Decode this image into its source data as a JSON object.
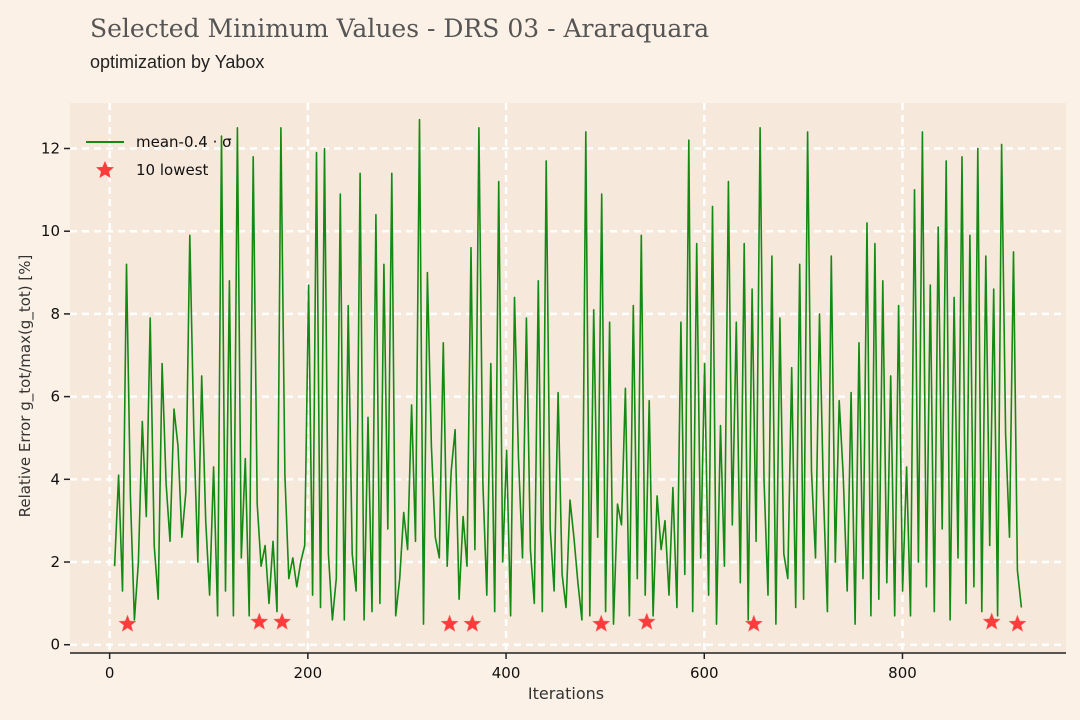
{
  "header": {
    "title": "Selected Minimum Values - DRS 03 - Araraquara",
    "subtitle": "optimization by Yabox"
  },
  "legend": {
    "line_label": "mean-0.4 · σ",
    "star_label": "10 lowest"
  },
  "colors": {
    "background": "#fcf1e7",
    "plot_background": "#f7e8dc",
    "line": "#138a13",
    "star": "#ff3b3b",
    "grid": "#ffffff"
  },
  "chart_data": {
    "type": "line",
    "title": "Selected Minimum Values - DRS 03 - Araraquara",
    "subtitle": "optimization by Yabox",
    "xlabel": "Iterations",
    "ylabel": "Relative Error g_tot/max(g_tot) [%]",
    "xlim": [
      -40,
      965
    ],
    "ylim": [
      -0.2,
      13.1
    ],
    "xticks": [
      0,
      200,
      400,
      600,
      800
    ],
    "yticks": [
      0,
      2,
      4,
      6,
      8,
      10,
      12
    ],
    "grid": true,
    "legend_position": "top-left",
    "series": [
      {
        "name": "mean-0.4 · σ",
        "values": [
          1.9,
          4.1,
          1.3,
          9.2,
          3.6,
          0.6,
          2.0,
          5.4,
          3.1,
          7.9,
          2.4,
          1.1,
          6.8,
          3.9,
          2.5,
          5.7,
          4.8,
          2.6,
          3.7,
          9.9,
          5.2,
          2.0,
          6.5,
          3.0,
          1.2,
          4.3,
          0.7,
          12.3,
          1.3,
          8.8,
          0.7,
          12.5,
          2.1,
          4.5,
          0.7,
          11.8,
          3.4,
          1.9,
          2.4,
          1.0,
          2.5,
          0.8,
          12.5,
          4.1,
          1.6,
          2.1,
          1.4,
          2.0,
          2.4,
          8.7,
          1.2,
          11.9,
          0.9,
          12.0,
          2.2,
          0.6,
          1.6,
          10.9,
          0.6,
          8.2,
          2.2,
          1.3,
          11.4,
          0.6,
          5.5,
          0.8,
          10.4,
          1.0,
          9.2,
          2.8,
          11.4,
          0.7,
          1.6,
          3.2,
          2.3,
          5.8,
          2.5,
          12.7,
          0.5,
          9.0,
          4.8,
          2.6,
          2.1,
          7.3,
          1.9,
          4.2,
          5.2,
          1.1,
          3.1,
          1.9,
          9.6,
          2.3,
          12.5,
          3.9,
          1.2,
          6.8,
          0.8,
          11.2,
          2.0,
          4.7,
          0.7,
          8.4,
          4.5,
          2.1,
          7.9,
          2.3,
          1.0,
          8.8,
          0.8,
          11.7,
          2.8,
          1.3,
          6.1,
          1.7,
          0.9,
          3.5,
          2.6,
          1.5,
          0.6,
          12.4,
          0.7,
          8.1,
          2.6,
          10.9,
          0.8,
          7.8,
          0.5,
          3.4,
          2.9,
          6.2,
          0.7,
          8.2,
          1.6,
          9.9,
          1.2,
          5.9,
          0.7,
          3.6,
          2.3,
          3.0,
          1.2,
          3.8,
          0.9,
          7.8,
          1.7,
          12.2,
          0.8,
          9.7,
          2.1,
          6.8,
          1.2,
          10.6,
          0.5,
          5.3,
          1.9,
          11.2,
          2.9,
          7.8,
          1.5,
          9.7,
          0.6,
          8.6,
          2.5,
          12.5,
          4.0,
          1.2,
          9.4,
          0.5,
          7.9,
          2.2,
          1.6,
          6.7,
          0.9,
          9.2,
          1.1,
          12.4,
          4.2,
          2.1,
          8.0,
          3.7,
          0.8,
          9.4,
          2.0,
          5.9,
          4.1,
          1.3,
          6.1,
          0.5,
          7.3,
          1.6,
          10.2,
          0.7,
          9.7,
          1.1,
          8.8,
          1.5,
          6.5,
          0.7,
          8.2,
          1.3,
          4.3,
          0.7,
          11.0,
          2.0,
          12.4,
          1.4,
          8.7,
          0.8,
          10.1,
          2.8,
          11.7,
          0.6,
          8.4,
          2.1,
          11.8,
          1.0,
          9.9,
          1.4,
          12.0,
          0.8,
          9.4,
          2.4,
          8.6,
          0.7,
          12.1,
          5.1,
          2.6,
          9.5,
          1.8,
          0.9
        ]
      }
    ],
    "lowest_points": [
      {
        "x": 18,
        "y": 0.5
      },
      {
        "x": 151,
        "y": 0.55
      },
      {
        "x": 174,
        "y": 0.55
      },
      {
        "x": 343,
        "y": 0.5
      },
      {
        "x": 366,
        "y": 0.5
      },
      {
        "x": 496,
        "y": 0.5
      },
      {
        "x": 542,
        "y": 0.55
      },
      {
        "x": 650,
        "y": 0.5
      },
      {
        "x": 890,
        "y": 0.55
      },
      {
        "x": 916,
        "y": 0.5
      }
    ]
  }
}
